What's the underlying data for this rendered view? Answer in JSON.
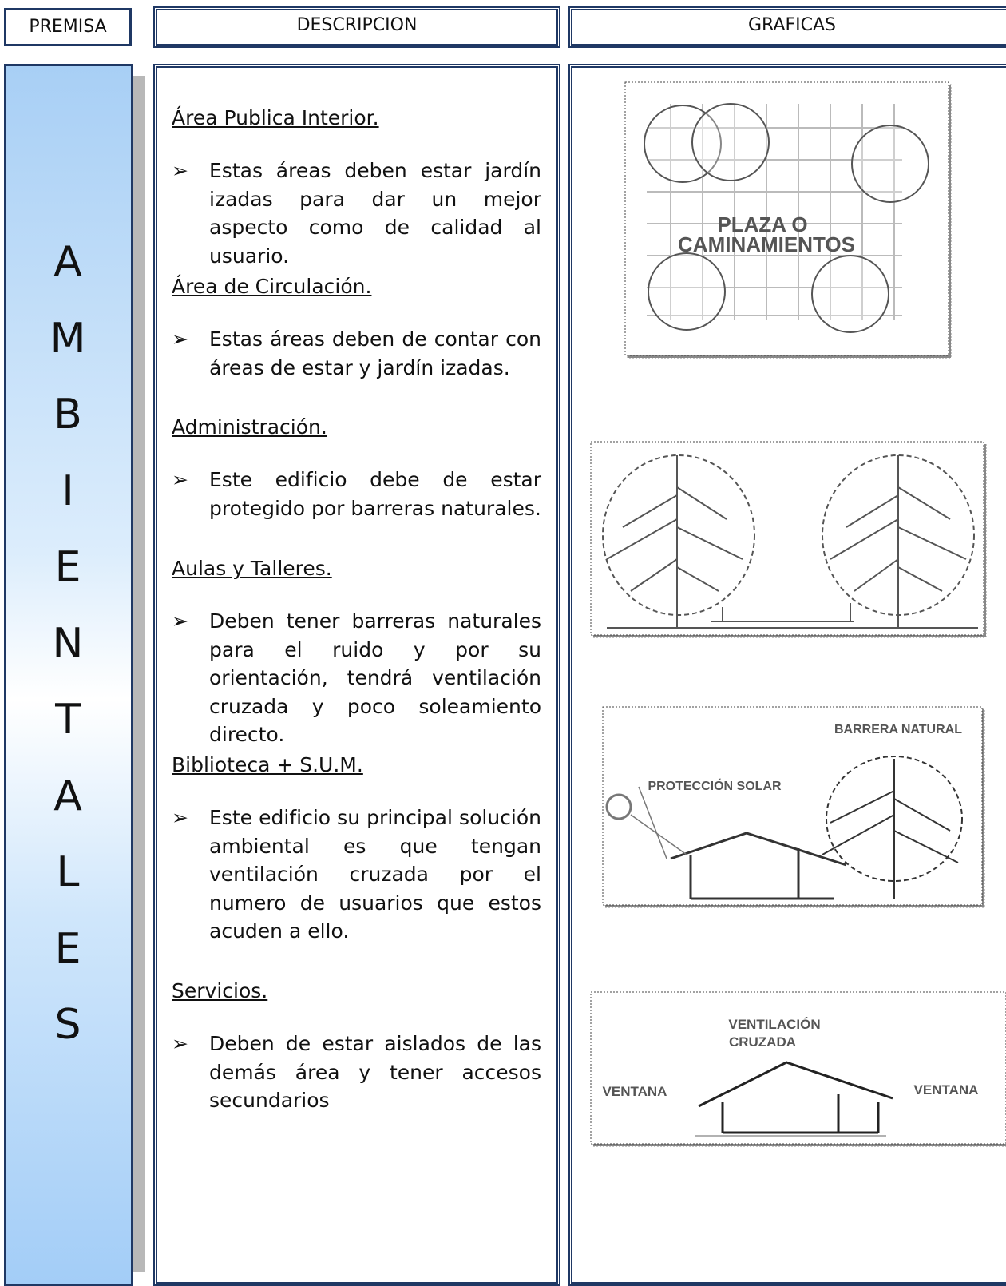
{
  "header": {
    "premisa": "PREMISA",
    "descripcion": "DESCRIPCION",
    "graficas": "GRAFICAS"
  },
  "premise": {
    "letters": [
      "A",
      "M",
      "B",
      "I",
      "E",
      "N",
      "T",
      "A",
      "L",
      "E",
      "S"
    ]
  },
  "sections": [
    {
      "title": "Área Publica Interior.",
      "text": "Estas áreas deben estar jardín izadas para dar un mejor aspecto como  de calidad al usuario."
    },
    {
      "title": "Área de Circulación.",
      "text": "Estas áreas deben de contar con áreas de estar y jardín izadas."
    },
    {
      "title": "Administración.",
      "text": "Este edificio debe de estar protegido por barreras naturales."
    },
    {
      "title": "Aulas y Talleres.",
      "text": "Deben tener barreras naturales para el ruido y por su orientación, tendrá ventilación cruzada y poco soleamiento directo."
    },
    {
      "title": "Biblioteca + S.U.M.",
      "text": "Este edificio su principal solución ambiental es que tengan ventilación cruzada por el numero de usuarios que estos acuden a ello."
    },
    {
      "title": "Servicios.",
      "text": "Deben de estar aislados de las demás área y tener accesos secundarios"
    }
  ],
  "graphics": {
    "plaza": [
      "PLAZA O",
      "CAMINAMIENTOS"
    ],
    "solar": {
      "barrier": "BARRERA NATURAL",
      "protection": "PROTECCIÓN SOLAR"
    },
    "ventilation": {
      "title": [
        "VENTILACIÓN",
        "CRUZADA"
      ],
      "window_left": "VENTANA",
      "window_right": "VENTANA"
    }
  }
}
